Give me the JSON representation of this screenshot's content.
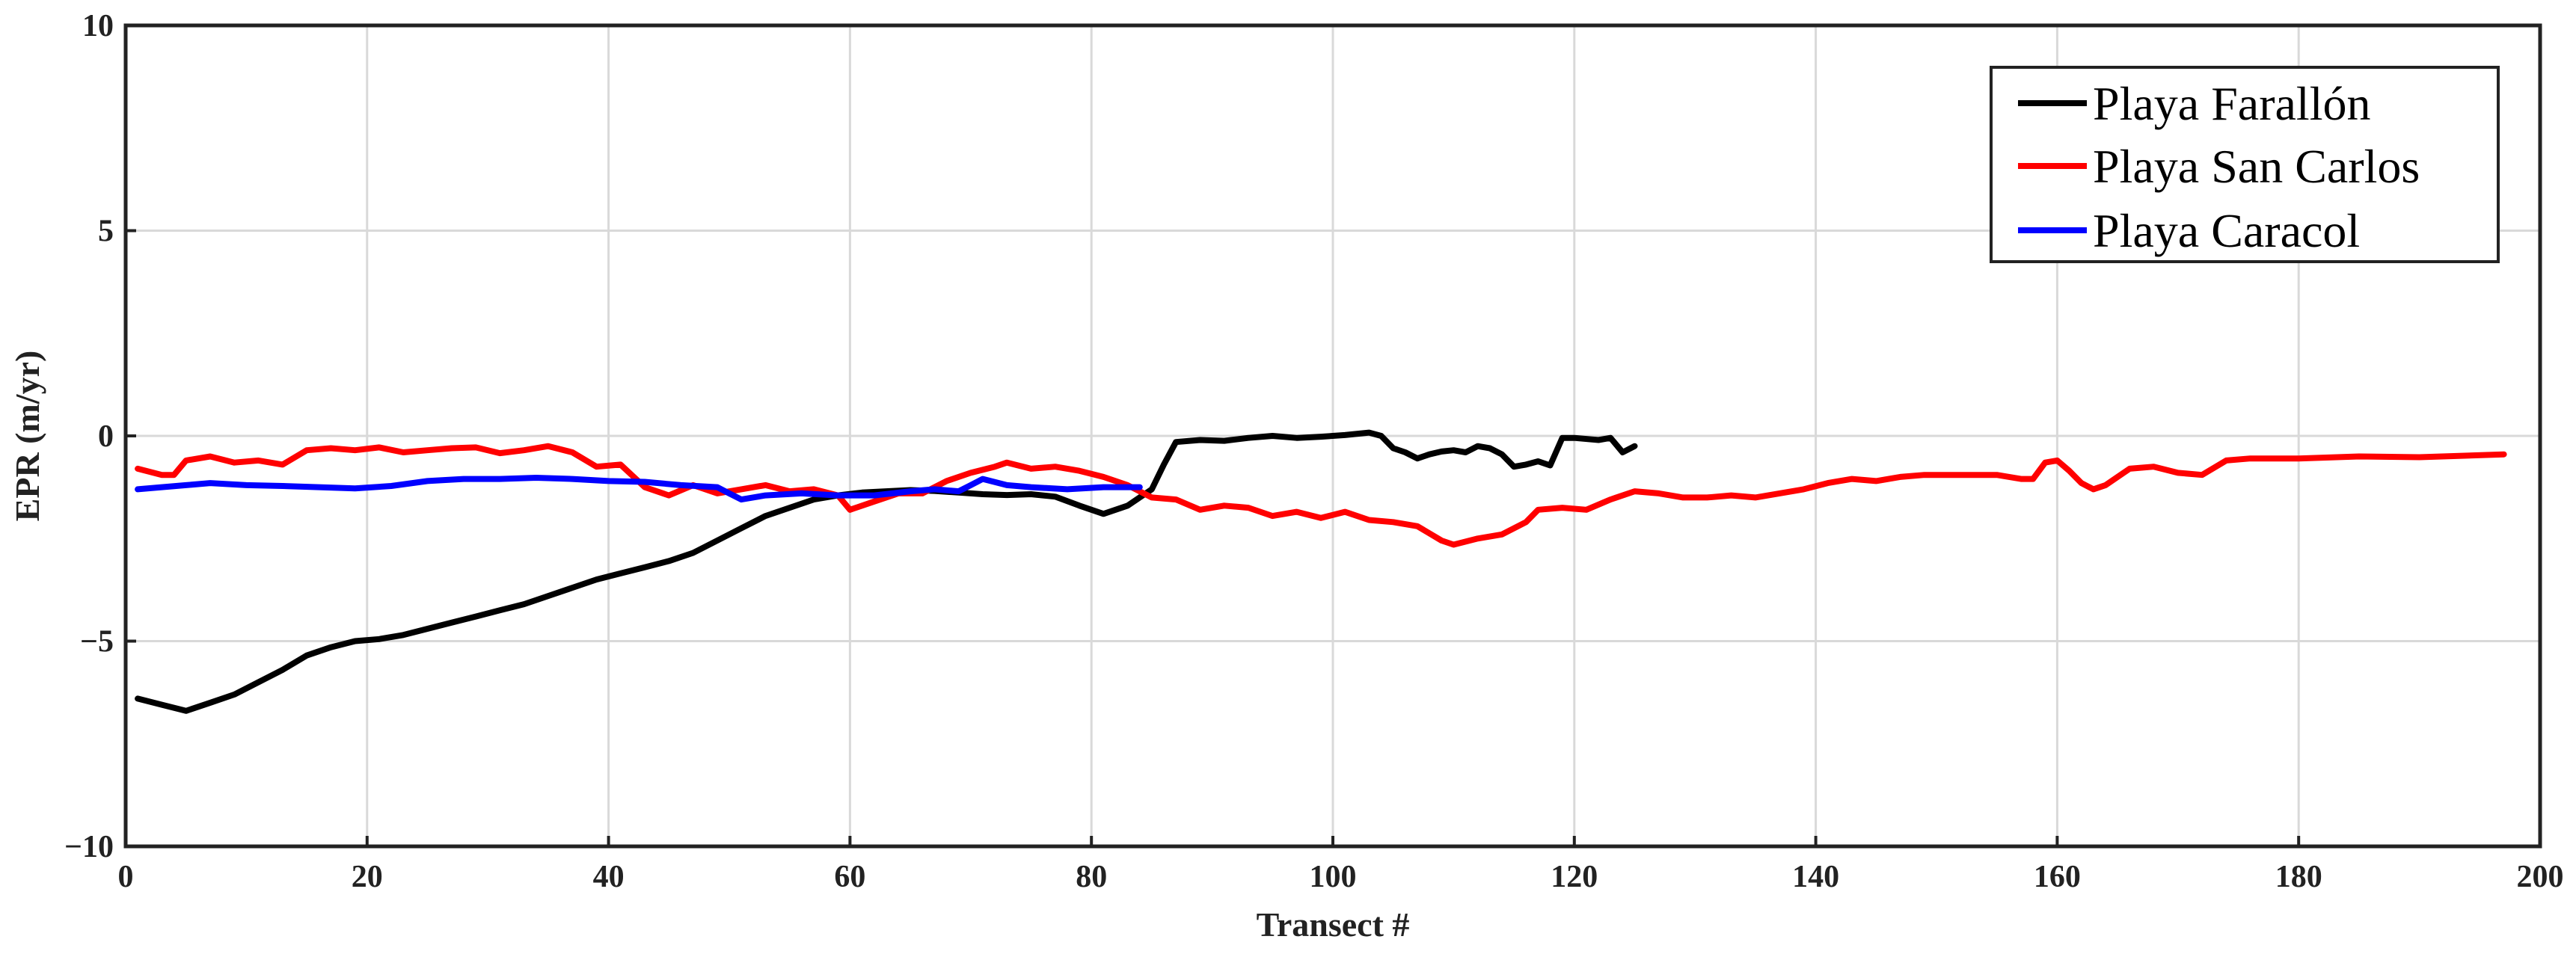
{
  "chart_data": {
    "type": "line",
    "xlabel": "Transect #",
    "ylabel": "EPR (m/yr)",
    "xlim": [
      0,
      200
    ],
    "ylim": [
      -10,
      10
    ],
    "xticks": [
      0,
      20,
      40,
      60,
      80,
      100,
      120,
      140,
      160,
      180,
      200
    ],
    "yticks": [
      10,
      5,
      0,
      -5,
      -10
    ],
    "ytick_labels": [
      "10",
      "5",
      "0",
      "−5",
      "−10"
    ],
    "grid": true,
    "legend_position": "top-right",
    "series": [
      {
        "name": "Playa Farallón",
        "color": "#000000",
        "points": [
          [
            1,
            -6.4
          ],
          [
            3,
            -6.55
          ],
          [
            5,
            -6.7
          ],
          [
            7,
            -6.5
          ],
          [
            9,
            -6.3
          ],
          [
            11,
            -6.0
          ],
          [
            13,
            -5.7
          ],
          [
            15,
            -5.35
          ],
          [
            17,
            -5.15
          ],
          [
            19,
            -5.0
          ],
          [
            21,
            -4.95
          ],
          [
            23,
            -4.85
          ],
          [
            25,
            -4.7
          ],
          [
            27,
            -4.55
          ],
          [
            29,
            -4.4
          ],
          [
            31,
            -4.25
          ],
          [
            33,
            -4.1
          ],
          [
            35,
            -3.9
          ],
          [
            37,
            -3.7
          ],
          [
            39,
            -3.5
          ],
          [
            41,
            -3.35
          ],
          [
            43,
            -3.2
          ],
          [
            45,
            -3.05
          ],
          [
            47,
            -2.85
          ],
          [
            49,
            -2.55
          ],
          [
            51,
            -2.25
          ],
          [
            53,
            -1.95
          ],
          [
            55,
            -1.75
          ],
          [
            57,
            -1.55
          ],
          [
            59,
            -1.45
          ],
          [
            61,
            -1.38
          ],
          [
            63,
            -1.35
          ],
          [
            65,
            -1.32
          ],
          [
            67,
            -1.34
          ],
          [
            69,
            -1.38
          ],
          [
            71,
            -1.42
          ],
          [
            73,
            -1.44
          ],
          [
            75,
            -1.42
          ],
          [
            77,
            -1.48
          ],
          [
            79,
            -1.7
          ],
          [
            81,
            -1.9
          ],
          [
            83,
            -1.7
          ],
          [
            85,
            -1.3
          ],
          [
            86,
            -0.7
          ],
          [
            87,
            -0.15
          ],
          [
            89,
            -0.1
          ],
          [
            91,
            -0.12
          ],
          [
            93,
            -0.05
          ],
          [
            95,
            0.0
          ],
          [
            97,
            -0.05
          ],
          [
            99,
            -0.02
          ],
          [
            101,
            0.02
          ],
          [
            103,
            0.08
          ],
          [
            104,
            0.0
          ],
          [
            105,
            -0.3
          ],
          [
            106,
            -0.4
          ],
          [
            107,
            -0.55
          ],
          [
            108,
            -0.45
          ],
          [
            109,
            -0.38
          ],
          [
            110,
            -0.35
          ],
          [
            111,
            -0.4
          ],
          [
            112,
            -0.25
          ],
          [
            113,
            -0.3
          ],
          [
            114,
            -0.45
          ],
          [
            115,
            -0.75
          ],
          [
            116,
            -0.7
          ],
          [
            117,
            -0.62
          ],
          [
            118,
            -0.72
          ],
          [
            119,
            -0.05
          ],
          [
            120,
            -0.05
          ],
          [
            122,
            -0.1
          ],
          [
            123,
            -0.05
          ],
          [
            124,
            -0.4
          ],
          [
            125,
            -0.25
          ]
        ]
      },
      {
        "name": "Playa San Carlos",
        "color": "#ff0000",
        "points": [
          [
            1,
            -0.8
          ],
          [
            3,
            -0.95
          ],
          [
            4,
            -0.95
          ],
          [
            5,
            -0.6
          ],
          [
            7,
            -0.5
          ],
          [
            9,
            -0.65
          ],
          [
            11,
            -0.6
          ],
          [
            13,
            -0.7
          ],
          [
            15,
            -0.35
          ],
          [
            17,
            -0.3
          ],
          [
            19,
            -0.35
          ],
          [
            21,
            -0.28
          ],
          [
            23,
            -0.4
          ],
          [
            25,
            -0.35
          ],
          [
            27,
            -0.3
          ],
          [
            29,
            -0.28
          ],
          [
            31,
            -0.42
          ],
          [
            33,
            -0.35
          ],
          [
            35,
            -0.25
          ],
          [
            37,
            -0.4
          ],
          [
            39,
            -0.75
          ],
          [
            41,
            -0.7
          ],
          [
            43,
            -1.25
          ],
          [
            45,
            -1.45
          ],
          [
            47,
            -1.2
          ],
          [
            49,
            -1.4
          ],
          [
            51,
            -1.3
          ],
          [
            53,
            -1.2
          ],
          [
            55,
            -1.35
          ],
          [
            57,
            -1.3
          ],
          [
            59,
            -1.45
          ],
          [
            60,
            -1.8
          ],
          [
            62,
            -1.6
          ],
          [
            64,
            -1.4
          ],
          [
            66,
            -1.4
          ],
          [
            68,
            -1.1
          ],
          [
            70,
            -0.9
          ],
          [
            72,
            -0.75
          ],
          [
            73,
            -0.65
          ],
          [
            75,
            -0.8
          ],
          [
            77,
            -0.75
          ],
          [
            79,
            -0.85
          ],
          [
            81,
            -1.0
          ],
          [
            83,
            -1.2
          ],
          [
            85,
            -1.5
          ],
          [
            87,
            -1.55
          ],
          [
            89,
            -1.8
          ],
          [
            91,
            -1.7
          ],
          [
            93,
            -1.75
          ],
          [
            95,
            -1.95
          ],
          [
            97,
            -1.85
          ],
          [
            99,
            -2.0
          ],
          [
            101,
            -1.85
          ],
          [
            103,
            -2.05
          ],
          [
            105,
            -2.1
          ],
          [
            107,
            -2.2
          ],
          [
            109,
            -2.55
          ],
          [
            110,
            -2.65
          ],
          [
            112,
            -2.5
          ],
          [
            114,
            -2.4
          ],
          [
            116,
            -2.1
          ],
          [
            117,
            -1.8
          ],
          [
            119,
            -1.75
          ],
          [
            121,
            -1.8
          ],
          [
            123,
            -1.55
          ],
          [
            125,
            -1.35
          ],
          [
            127,
            -1.4
          ],
          [
            129,
            -1.5
          ],
          [
            131,
            -1.5
          ],
          [
            133,
            -1.45
          ],
          [
            135,
            -1.5
          ],
          [
            137,
            -1.4
          ],
          [
            139,
            -1.3
          ],
          [
            141,
            -1.15
          ],
          [
            143,
            -1.05
          ],
          [
            145,
            -1.1
          ],
          [
            147,
            -1.0
          ],
          [
            149,
            -0.95
          ],
          [
            151,
            -0.95
          ],
          [
            153,
            -0.95
          ],
          [
            155,
            -0.95
          ],
          [
            157,
            -1.05
          ],
          [
            158,
            -1.05
          ],
          [
            159,
            -0.65
          ],
          [
            160,
            -0.6
          ],
          [
            161,
            -0.85
          ],
          [
            162,
            -1.15
          ],
          [
            163,
            -1.3
          ],
          [
            164,
            -1.2
          ],
          [
            166,
            -0.8
          ],
          [
            168,
            -0.75
          ],
          [
            170,
            -0.9
          ],
          [
            172,
            -0.95
          ],
          [
            174,
            -0.6
          ],
          [
            176,
            -0.55
          ],
          [
            180,
            -0.55
          ],
          [
            185,
            -0.5
          ],
          [
            190,
            -0.52
          ],
          [
            197,
            -0.45
          ]
        ]
      },
      {
        "name": "Playa Caracol",
        "color": "#0000ff",
        "points": [
          [
            1,
            -1.3
          ],
          [
            3,
            -1.25
          ],
          [
            5,
            -1.2
          ],
          [
            7,
            -1.15
          ],
          [
            10,
            -1.2
          ],
          [
            13,
            -1.22
          ],
          [
            16,
            -1.25
          ],
          [
            19,
            -1.28
          ],
          [
            22,
            -1.22
          ],
          [
            25,
            -1.1
          ],
          [
            28,
            -1.05
          ],
          [
            31,
            -1.05
          ],
          [
            34,
            -1.02
          ],
          [
            37,
            -1.05
          ],
          [
            40,
            -1.1
          ],
          [
            43,
            -1.12
          ],
          [
            46,
            -1.2
          ],
          [
            49,
            -1.25
          ],
          [
            50,
            -1.4
          ],
          [
            51,
            -1.55
          ],
          [
            53,
            -1.45
          ],
          [
            56,
            -1.4
          ],
          [
            59,
            -1.45
          ],
          [
            62,
            -1.45
          ],
          [
            65,
            -1.35
          ],
          [
            67,
            -1.3
          ],
          [
            69,
            -1.35
          ],
          [
            70,
            -1.2
          ],
          [
            71,
            -1.05
          ],
          [
            73,
            -1.2
          ],
          [
            75,
            -1.25
          ],
          [
            78,
            -1.3
          ],
          [
            81,
            -1.25
          ],
          [
            84,
            -1.25
          ]
        ]
      }
    ]
  }
}
